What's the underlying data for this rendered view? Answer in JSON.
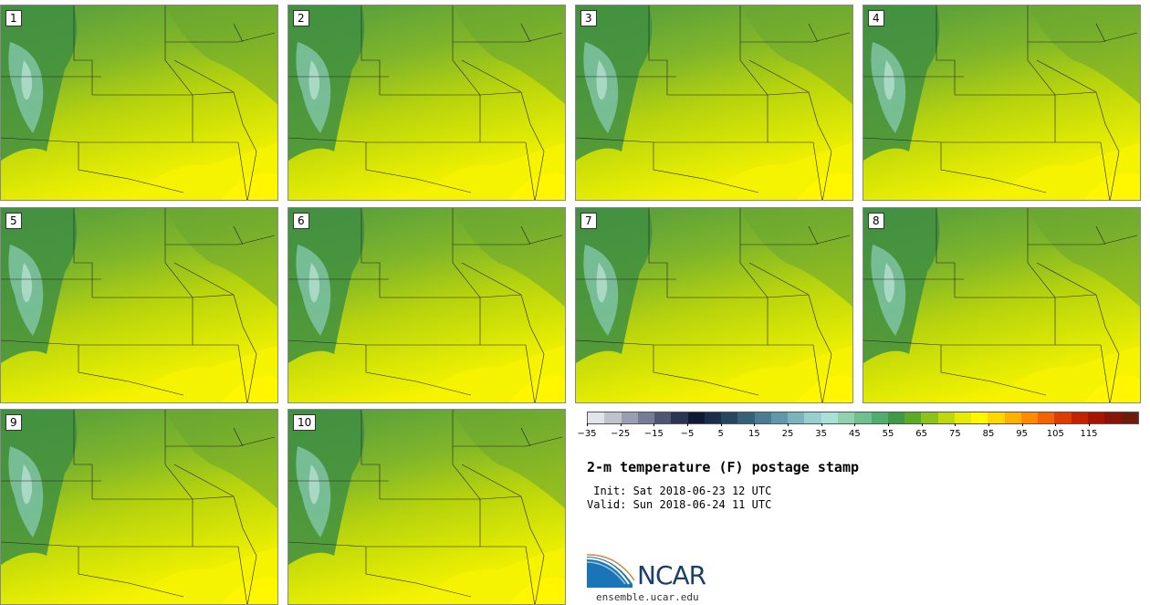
{
  "panels": [
    {
      "label": "1"
    },
    {
      "label": "2"
    },
    {
      "label": "3"
    },
    {
      "label": "4"
    },
    {
      "label": "5"
    },
    {
      "label": "6"
    },
    {
      "label": "7"
    },
    {
      "label": "8"
    },
    {
      "label": "9"
    },
    {
      "label": "10"
    }
  ],
  "colorbar": {
    "colors": [
      "#e2e4ea",
      "#c0c3ce",
      "#9a9eb0",
      "#777c94",
      "#4f5674",
      "#2b3453",
      "#0f1a35",
      "#1a2d4a",
      "#26455f",
      "#356179",
      "#4a7c92",
      "#6098a9",
      "#7bb3be",
      "#97cfd0",
      "#a9e0d8",
      "#8fd1b1",
      "#6fbf8f",
      "#52ad70",
      "#3e9a44",
      "#5aac25",
      "#8dc21c",
      "#bfd70d",
      "#e7ea04",
      "#fff600",
      "#ffd800",
      "#ffb000",
      "#ff8a00",
      "#f46300",
      "#dd3d00",
      "#c42200",
      "#a71500",
      "#8a1208",
      "#6e1b0e"
    ],
    "ticks": [
      "−35",
      "−25",
      "−15",
      "−5",
      "5",
      "15",
      "25",
      "35",
      "45",
      "55",
      "65",
      "75",
      "85",
      "95",
      "105",
      "115"
    ]
  },
  "title": "2-m temperature (F) postage stamp",
  "init_line": " Init: Sat 2018-06-23 12 UTC",
  "valid_line": "Valid: Sun 2018-06-24 11 UTC",
  "logo": {
    "name": "NCAR",
    "url": "ensemble.ucar.edu"
  }
}
